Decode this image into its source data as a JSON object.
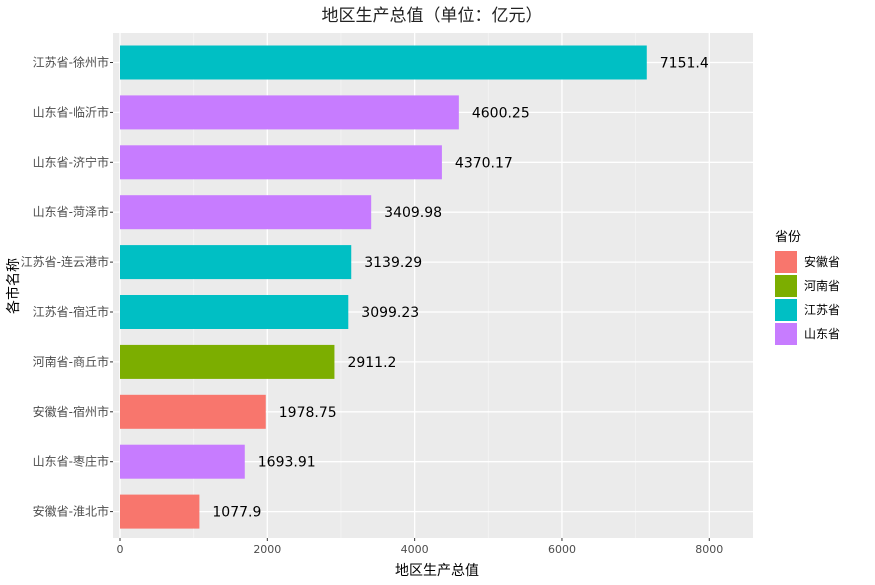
{
  "chart_data": {
    "type": "bar",
    "orientation": "horizontal",
    "title": "地区生产总值（单位：亿元）",
    "xlabel": "地区生产总值",
    "ylabel": "各市名称",
    "xlim": [
      0,
      8500
    ],
    "x_ticks": [
      0,
      2000,
      4000,
      6000,
      8000
    ],
    "grid": true,
    "legend": {
      "title": "省份",
      "position": "right",
      "items": [
        {
          "label": "安徽省",
          "color": "#F8766D"
        },
        {
          "label": "河南省",
          "color": "#7CAE00"
        },
        {
          "label": "江苏省",
          "color": "#00BFC4"
        },
        {
          "label": "山东省",
          "color": "#C77CFF"
        }
      ]
    },
    "bars": [
      {
        "category": "江苏省-徐州市",
        "value": 7151.4,
        "label": "7151.4",
        "group": "江苏省"
      },
      {
        "category": "山东省-临沂市",
        "value": 4600.25,
        "label": "4600.25",
        "group": "山东省"
      },
      {
        "category": "山东省-济宁市",
        "value": 4370.17,
        "label": "4370.17",
        "group": "山东省"
      },
      {
        "category": "山东省-菏泽市",
        "value": 3409.98,
        "label": "3409.98",
        "group": "山东省"
      },
      {
        "category": "江苏省-连云港市",
        "value": 3139.29,
        "label": "3139.29",
        "group": "江苏省"
      },
      {
        "category": "江苏省-宿迁市",
        "value": 3099.23,
        "label": "3099.23",
        "group": "江苏省"
      },
      {
        "category": "河南省-商丘市",
        "value": 2911.2,
        "label": "2911.2",
        "group": "河南省"
      },
      {
        "category": "安徽省-宿州市",
        "value": 1978.75,
        "label": "1978.75",
        "group": "安徽省"
      },
      {
        "category": "山东省-枣庄市",
        "value": 1693.91,
        "label": "1693.91",
        "group": "山东省"
      },
      {
        "category": "安徽省-淮北市",
        "value": 1077.9,
        "label": "1077.9",
        "group": "安徽省"
      }
    ]
  }
}
